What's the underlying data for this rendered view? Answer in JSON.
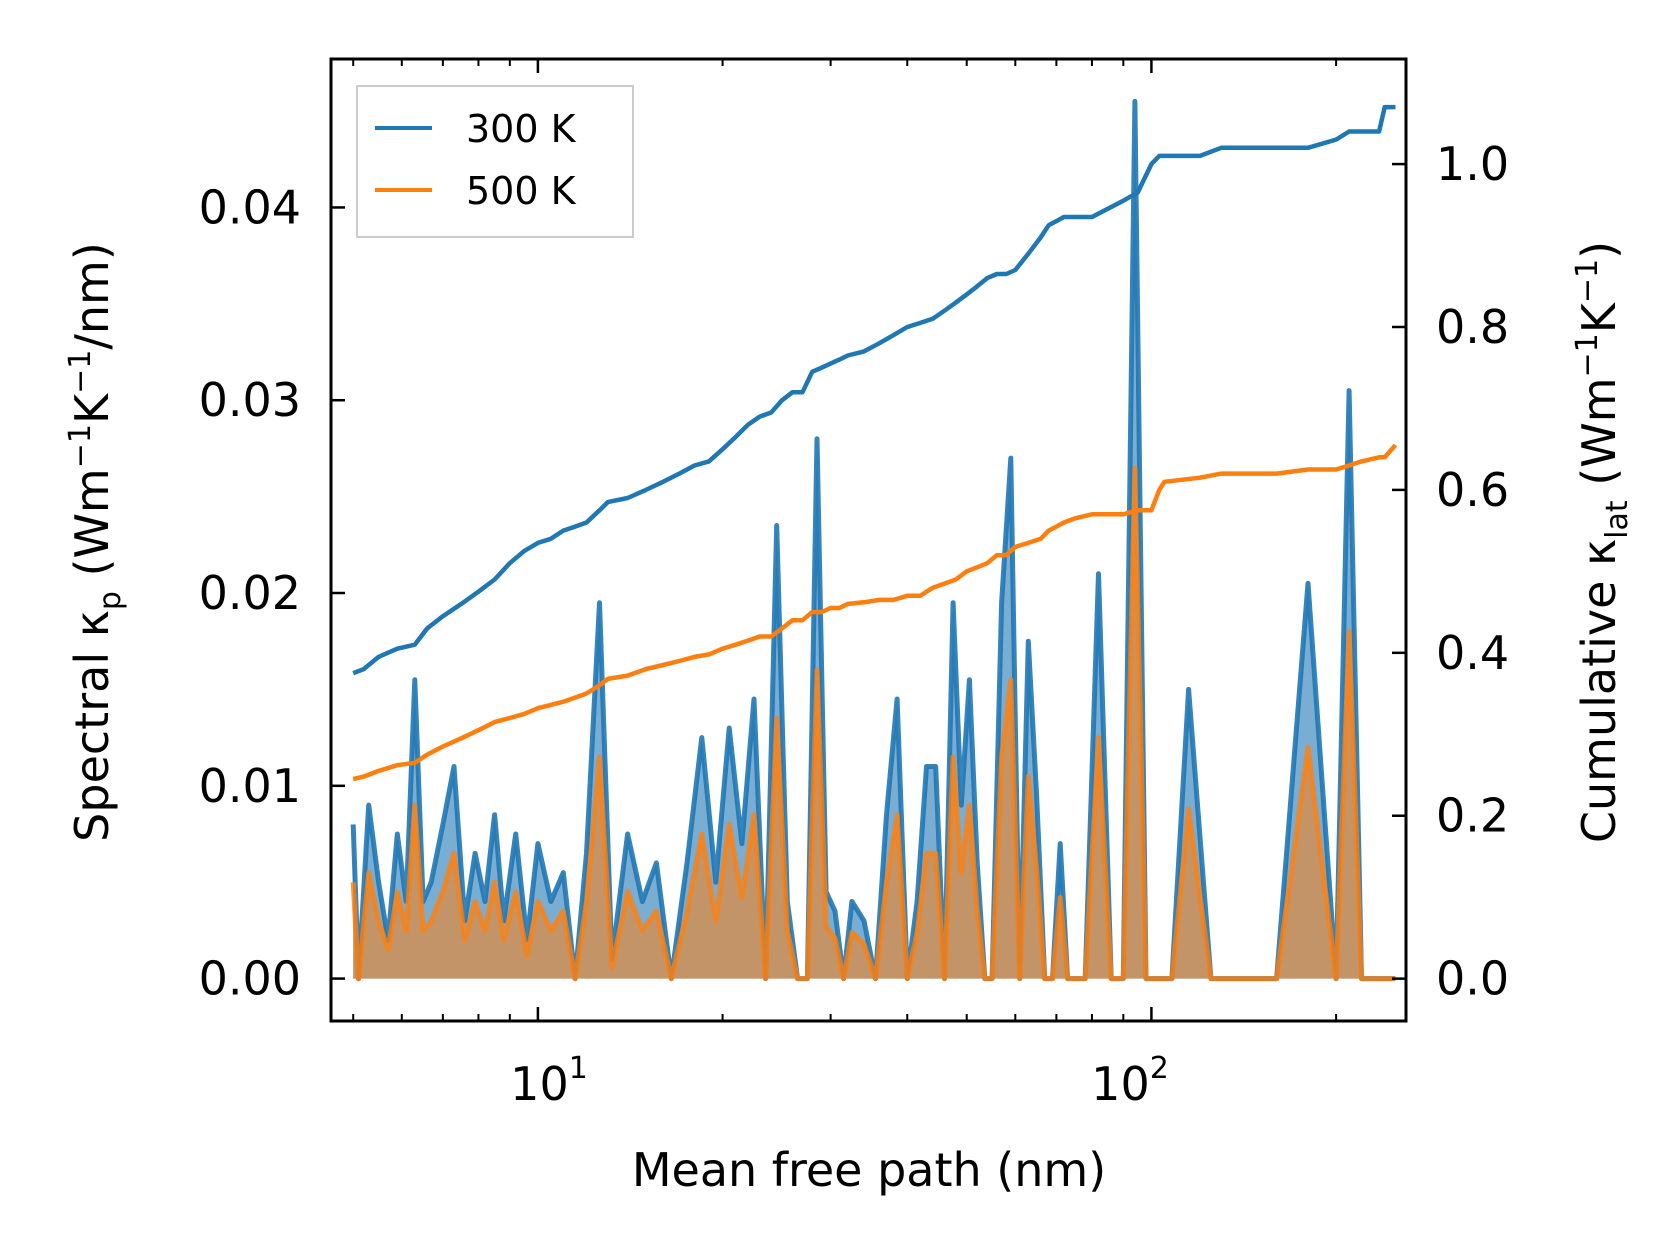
{
  "chart_data": {
    "type": "line",
    "title": "",
    "xlabel": "Mean free path (nm)",
    "xscale": "log",
    "xlim": [
      4.6,
      260
    ],
    "x_tick_labels": [
      {
        "base": "10",
        "exp": "1",
        "value": 10
      },
      {
        "base": "10",
        "exp": "2",
        "value": 100
      }
    ],
    "left_axis": {
      "label": {
        "prefix": "Spectral κ",
        "sub": "p",
        "open": " (Wm",
        "sup1": "−1",
        "mid": "K",
        "sup2": "−1",
        "close": "/nm)"
      },
      "ylim": [
        -0.0022,
        0.0477
      ],
      "ticks": [
        0,
        0.01,
        0.02,
        0.03,
        0.04
      ],
      "tick_labels": [
        "0.00",
        "0.01",
        "0.02",
        "0.03",
        "0.04"
      ]
    },
    "right_axis": {
      "label": {
        "prefix": "Cumulative κ",
        "sub": "lat",
        "open": " (Wm",
        "sup1": "−1",
        "mid": "K",
        "sup2": "−1",
        "close": ")"
      },
      "ylim": [
        -0.052,
        1.129
      ],
      "ticks": [
        0,
        0.2,
        0.4,
        0.6,
        0.8,
        1.0
      ],
      "tick_labels": [
        "0.0",
        "0.2",
        "0.4",
        "0.6",
        "0.8",
        "1.0"
      ]
    },
    "legend": {
      "position": "top-left",
      "entries": [
        {
          "label": "300 K",
          "color": "#1f77b4"
        },
        {
          "label": "500 K",
          "color": "#ff7f0e"
        }
      ]
    },
    "series": [
      {
        "name": "300 K",
        "color": "#1f77b4",
        "axis": "right",
        "kind": "cumulative",
        "x": [
          5.0,
          5.2,
          5.5,
          5.9,
          6.3,
          6.6,
          7.0,
          7.5,
          8.0,
          8.5,
          9.0,
          9.5,
          10.0,
          10.5,
          11.0,
          11.5,
          12.0,
          12.6,
          13.0,
          14.0,
          15.0,
          16.0,
          17.0,
          18.0,
          19.0,
          20.0,
          21.0,
          22.0,
          23.0,
          24.0,
          25.0,
          26.0,
          27.0,
          28.0,
          29.0,
          30.0,
          31.0,
          32.0,
          34.0,
          36.0,
          38.0,
          40.0,
          42.0,
          44.0,
          46.0,
          48.0,
          50.0,
          52.0,
          54.0,
          56.0,
          58.0,
          60.0,
          63.0,
          66.0,
          68.0,
          70.0,
          72.0,
          75.0,
          80.0,
          90.0,
          95.0,
          100.0,
          103.0,
          105.0,
          120.0,
          130.0,
          140.0,
          160.0,
          180.0,
          200.0,
          210.0,
          220.0,
          235.0,
          240.0,
          250.0
        ],
        "y": [
          0.375,
          0.38,
          0.395,
          0.405,
          0.41,
          0.43,
          0.445,
          0.46,
          0.475,
          0.49,
          0.51,
          0.525,
          0.535,
          0.54,
          0.55,
          0.555,
          0.56,
          0.575,
          0.585,
          0.59,
          0.6,
          0.61,
          0.62,
          0.63,
          0.635,
          0.65,
          0.665,
          0.68,
          0.69,
          0.695,
          0.71,
          0.72,
          0.72,
          0.745,
          0.75,
          0.755,
          0.76,
          0.765,
          0.77,
          0.78,
          0.79,
          0.8,
          0.805,
          0.81,
          0.82,
          0.83,
          0.84,
          0.85,
          0.86,
          0.865,
          0.865,
          0.87,
          0.89,
          0.91,
          0.925,
          0.93,
          0.935,
          0.935,
          0.935,
          0.955,
          0.965,
          1.0,
          1.01,
          1.01,
          1.01,
          1.02,
          1.02,
          1.02,
          1.02,
          1.03,
          1.04,
          1.04,
          1.04,
          1.07,
          1.07
        ]
      },
      {
        "name": "500 K",
        "color": "#ff7f0e",
        "axis": "right",
        "kind": "cumulative",
        "x": [
          5.0,
          5.2,
          5.5,
          5.9,
          6.3,
          6.6,
          7.0,
          7.5,
          8.0,
          8.5,
          9.0,
          9.5,
          10.0,
          10.5,
          11.0,
          11.5,
          12.0,
          12.6,
          13.0,
          14.0,
          15.0,
          16.0,
          17.0,
          18.0,
          19.0,
          20.0,
          21.0,
          22.0,
          23.0,
          24.0,
          25.0,
          26.0,
          27.0,
          28.0,
          29.0,
          30.0,
          31.0,
          32.0,
          34.0,
          36.0,
          38.0,
          40.0,
          42.0,
          44.0,
          46.0,
          48.0,
          50.0,
          52.0,
          54.0,
          56.0,
          58.0,
          60.0,
          63.0,
          66.0,
          68.0,
          70.0,
          72.0,
          75.0,
          80.0,
          90.0,
          95.0,
          100.0,
          103.0,
          105.0,
          120.0,
          130.0,
          140.0,
          160.0,
          180.0,
          200.0,
          210.0,
          220.0,
          235.0,
          240.0,
          250.0
        ],
        "y": [
          0.245,
          0.248,
          0.255,
          0.262,
          0.265,
          0.275,
          0.285,
          0.295,
          0.305,
          0.315,
          0.32,
          0.325,
          0.332,
          0.336,
          0.34,
          0.345,
          0.35,
          0.36,
          0.368,
          0.372,
          0.38,
          0.385,
          0.39,
          0.395,
          0.398,
          0.405,
          0.41,
          0.415,
          0.42,
          0.42,
          0.43,
          0.44,
          0.44,
          0.45,
          0.45,
          0.455,
          0.455,
          0.46,
          0.462,
          0.465,
          0.465,
          0.47,
          0.47,
          0.48,
          0.485,
          0.49,
          0.5,
          0.505,
          0.51,
          0.52,
          0.52,
          0.53,
          0.535,
          0.54,
          0.55,
          0.555,
          0.56,
          0.565,
          0.57,
          0.57,
          0.575,
          0.575,
          0.6,
          0.61,
          0.615,
          0.62,
          0.62,
          0.62,
          0.625,
          0.625,
          0.63,
          0.635,
          0.64,
          0.64,
          0.655
        ]
      },
      {
        "name": "300 K",
        "color": "#1f77b4",
        "axis": "left",
        "kind": "spectral",
        "x": [
          5.0,
          5.1,
          5.3,
          5.5,
          5.7,
          5.9,
          6.1,
          6.3,
          6.5,
          6.7,
          7.0,
          7.3,
          7.6,
          7.9,
          8.2,
          8.5,
          8.8,
          9.2,
          9.6,
          10.0,
          10.5,
          11.0,
          11.5,
          12.0,
          12.6,
          13.2,
          14.0,
          14.8,
          15.6,
          16.5,
          17.5,
          18.5,
          19.5,
          20.5,
          21.5,
          22.5,
          23.5,
          24.5,
          25.5,
          26.5,
          27.5,
          28.5,
          29.5,
          30.5,
          31.5,
          32.5,
          34.0,
          35.5,
          37.0,
          38.5,
          40.0,
          41.5,
          43.0,
          44.5,
          46.0,
          47.5,
          49.0,
          50.5,
          52.0,
          53.5,
          55.0,
          57.0,
          59.0,
          61.0,
          63.0,
          65.0,
          67.0,
          69.0,
          71.0,
          73.0,
          75.0,
          78.0,
          82.0,
          86.0,
          90.0,
          94.0,
          98.0,
          103.0,
          108.0,
          115.0,
          125.0,
          135.0,
          145.0,
          160.0,
          180.0,
          200.0,
          210.0,
          220.0,
          230.0,
          240.0,
          250.0
        ],
        "y": [
          0.008,
          0.0,
          0.009,
          0.005,
          0.002,
          0.0075,
          0.004,
          0.0155,
          0.004,
          0.005,
          0.008,
          0.011,
          0.003,
          0.0065,
          0.004,
          0.0085,
          0.003,
          0.0075,
          0.002,
          0.007,
          0.004,
          0.0055,
          0.0,
          0.0065,
          0.0195,
          0.001,
          0.0075,
          0.004,
          0.006,
          0.0,
          0.006,
          0.0125,
          0.005,
          0.013,
          0.007,
          0.0145,
          0.0,
          0.0235,
          0.004,
          0.0,
          0.0,
          0.028,
          0.0045,
          0.0035,
          0.0,
          0.004,
          0.003,
          0.0,
          0.0085,
          0.0145,
          0.0,
          0.004,
          0.011,
          0.011,
          0.0,
          0.0195,
          0.009,
          0.0155,
          0.006,
          0.0,
          0.0,
          0.0195,
          0.027,
          0.0,
          0.0175,
          0.0095,
          0.0,
          0.0,
          0.007,
          0.0,
          0.0,
          0.0,
          0.021,
          0.0,
          0.0,
          0.0455,
          0.0,
          0.0,
          0.0,
          0.015,
          0.0,
          0.0,
          0.0,
          0.0,
          0.0205,
          0.0,
          0.0305,
          0.0,
          0.0,
          0.0,
          0.0
        ]
      },
      {
        "name": "500 K",
        "color": "#ff7f0e",
        "axis": "left",
        "kind": "spectral",
        "x": [
          5.0,
          5.1,
          5.3,
          5.5,
          5.7,
          5.9,
          6.1,
          6.3,
          6.5,
          6.7,
          7.0,
          7.3,
          7.6,
          7.9,
          8.2,
          8.5,
          8.8,
          9.2,
          9.6,
          10.0,
          10.5,
          11.0,
          11.5,
          12.0,
          12.6,
          13.2,
          14.0,
          14.8,
          15.6,
          16.5,
          17.5,
          18.5,
          19.5,
          20.5,
          21.5,
          22.5,
          23.5,
          24.5,
          25.5,
          26.5,
          27.5,
          28.5,
          29.5,
          30.5,
          31.5,
          32.5,
          34.0,
          35.5,
          37.0,
          38.5,
          40.0,
          41.5,
          43.0,
          44.5,
          46.0,
          47.5,
          49.0,
          50.5,
          52.0,
          53.5,
          55.0,
          57.0,
          59.0,
          61.0,
          63.0,
          65.0,
          67.0,
          69.0,
          71.0,
          73.0,
          75.0,
          78.0,
          82.0,
          86.0,
          90.0,
          94.0,
          98.0,
          103.0,
          108.0,
          115.0,
          125.0,
          135.0,
          145.0,
          160.0,
          180.0,
          200.0,
          210.0,
          220.0,
          230.0,
          240.0,
          250.0
        ],
        "y": [
          0.005,
          0.0,
          0.0055,
          0.003,
          0.0015,
          0.0045,
          0.0025,
          0.009,
          0.0025,
          0.003,
          0.0045,
          0.0065,
          0.002,
          0.004,
          0.0025,
          0.005,
          0.002,
          0.0045,
          0.0012,
          0.004,
          0.0025,
          0.0035,
          0.0,
          0.004,
          0.0115,
          0.0006,
          0.0045,
          0.0025,
          0.0035,
          0.0,
          0.0035,
          0.0075,
          0.003,
          0.008,
          0.0042,
          0.0085,
          0.0,
          0.0135,
          0.0025,
          0.0,
          0.0,
          0.016,
          0.0027,
          0.0021,
          0.0,
          0.0024,
          0.0018,
          0.0,
          0.005,
          0.0085,
          0.0,
          0.0024,
          0.0065,
          0.0065,
          0.0,
          0.0115,
          0.0055,
          0.009,
          0.0036,
          0.0,
          0.0,
          0.0115,
          0.0155,
          0.0,
          0.0105,
          0.0057,
          0.0,
          0.0,
          0.0042,
          0.0,
          0.0,
          0.0,
          0.0125,
          0.0,
          0.0,
          0.0265,
          0.0,
          0.0,
          0.0,
          0.0088,
          0.0,
          0.0,
          0.0,
          0.0,
          0.012,
          0.0,
          0.018,
          0.0,
          0.0,
          0.0,
          0.0
        ]
      }
    ]
  }
}
